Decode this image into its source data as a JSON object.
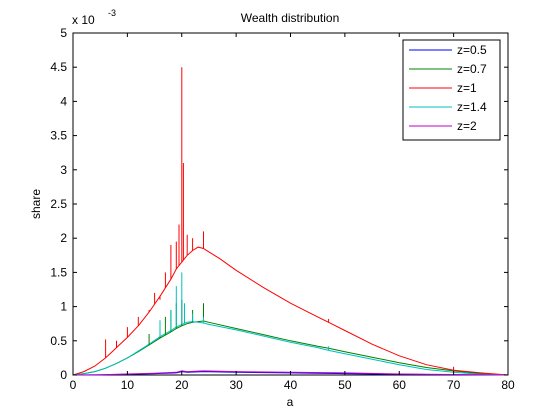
{
  "chart_data": {
    "type": "line",
    "title": "Wealth distribution",
    "xlabel": "a",
    "ylabel": "share",
    "y_scale_label": "x 10",
    "y_scale_exponent": "-3",
    "xlim": [
      0,
      80
    ],
    "ylim": [
      0,
      5
    ],
    "x_ticks": [
      0,
      10,
      20,
      30,
      40,
      50,
      60,
      70,
      80
    ],
    "y_ticks": [
      0,
      0.5,
      1,
      1.5,
      2,
      2.5,
      3,
      3.5,
      4,
      4.5,
      5
    ],
    "grid": false,
    "legend_position": "top-right",
    "series": [
      {
        "name": "z=0.5",
        "color": "#0000ff",
        "points": [
          [
            0,
            0
          ],
          [
            5,
            0.002
          ],
          [
            10,
            0.01
          ],
          [
            15,
            0.02
          ],
          [
            19,
            0.03
          ],
          [
            20,
            0.05
          ],
          [
            21,
            0.04
          ],
          [
            24,
            0.05
          ],
          [
            30,
            0.04
          ],
          [
            40,
            0.03
          ],
          [
            50,
            0.02
          ],
          [
            60,
            0.01
          ],
          [
            70,
            0.005
          ],
          [
            80,
            0
          ]
        ]
      },
      {
        "name": "z=0.7",
        "color": "#008000",
        "points": [
          [
            0,
            0
          ],
          [
            2,
            0.02
          ],
          [
            4,
            0.05
          ],
          [
            6,
            0.1
          ],
          [
            8,
            0.17
          ],
          [
            10,
            0.25
          ],
          [
            12,
            0.34
          ],
          [
            14,
            0.44
          ],
          [
            16,
            0.54
          ],
          [
            18,
            0.63
          ],
          [
            19,
            0.68
          ],
          [
            20,
            0.72
          ],
          [
            21,
            0.75
          ],
          [
            22,
            0.77
          ],
          [
            23,
            0.78
          ],
          [
            24,
            0.79
          ],
          [
            25,
            0.77
          ],
          [
            30,
            0.68
          ],
          [
            35,
            0.59
          ],
          [
            40,
            0.5
          ],
          [
            45,
            0.42
          ],
          [
            47,
            0.39
          ],
          [
            50,
            0.34
          ],
          [
            55,
            0.26
          ],
          [
            60,
            0.18
          ],
          [
            65,
            0.11
          ],
          [
            70,
            0.06
          ],
          [
            75,
            0.02
          ],
          [
            80,
            0
          ]
        ]
      },
      {
        "name": "z=1",
        "color": "#ff0000",
        "points": [
          [
            0,
            0
          ],
          [
            2,
            0.05
          ],
          [
            4,
            0.13
          ],
          [
            6,
            0.25
          ],
          [
            8,
            0.4
          ],
          [
            10,
            0.55
          ],
          [
            12,
            0.72
          ],
          [
            14,
            0.92
          ],
          [
            16,
            1.15
          ],
          [
            18,
            1.4
          ],
          [
            19,
            1.55
          ],
          [
            20,
            1.65
          ],
          [
            21,
            1.75
          ],
          [
            22,
            1.82
          ],
          [
            23,
            1.87
          ],
          [
            24,
            1.85
          ],
          [
            25,
            1.8
          ],
          [
            27,
            1.7
          ],
          [
            30,
            1.53
          ],
          [
            35,
            1.28
          ],
          [
            40,
            1.05
          ],
          [
            45,
            0.85
          ],
          [
            47,
            0.77
          ],
          [
            50,
            0.65
          ],
          [
            55,
            0.45
          ],
          [
            60,
            0.28
          ],
          [
            65,
            0.15
          ],
          [
            70,
            0.07
          ],
          [
            75,
            0.03
          ],
          [
            80,
            0
          ]
        ]
      },
      {
        "name": "z=1.4",
        "color": "#00bfbf",
        "points": [
          [
            0,
            0
          ],
          [
            2,
            0.02
          ],
          [
            4,
            0.05
          ],
          [
            6,
            0.1
          ],
          [
            8,
            0.17
          ],
          [
            10,
            0.25
          ],
          [
            12,
            0.35
          ],
          [
            14,
            0.45
          ],
          [
            16,
            0.56
          ],
          [
            18,
            0.65
          ],
          [
            19,
            0.7
          ],
          [
            20,
            0.74
          ],
          [
            21,
            0.77
          ],
          [
            22,
            0.78
          ],
          [
            23,
            0.77
          ],
          [
            24,
            0.76
          ],
          [
            25,
            0.74
          ],
          [
            30,
            0.66
          ],
          [
            35,
            0.57
          ],
          [
            40,
            0.48
          ],
          [
            45,
            0.4
          ],
          [
            47,
            0.36
          ],
          [
            50,
            0.31
          ],
          [
            55,
            0.23
          ],
          [
            60,
            0.15
          ],
          [
            65,
            0.08
          ],
          [
            70,
            0.04
          ],
          [
            75,
            0.01
          ],
          [
            80,
            0
          ]
        ]
      },
      {
        "name": "z=2",
        "color": "#bf00bf",
        "points": [
          [
            0,
            0
          ],
          [
            5,
            0.005
          ],
          [
            10,
            0.015
          ],
          [
            15,
            0.025
          ],
          [
            19,
            0.04
          ],
          [
            20,
            0.06
          ],
          [
            21,
            0.05
          ],
          [
            24,
            0.06
          ],
          [
            30,
            0.05
          ],
          [
            40,
            0.04
          ],
          [
            50,
            0.03
          ],
          [
            60,
            0.015
          ],
          [
            70,
            0.008
          ],
          [
            80,
            0
          ]
        ]
      }
    ],
    "spikes": [
      {
        "series": "z=1",
        "points": [
          [
            6,
            0.52
          ],
          [
            8,
            0.5
          ],
          [
            10,
            0.7
          ],
          [
            12,
            0.85
          ],
          [
            14,
            0.95
          ],
          [
            15,
            1.2
          ],
          [
            16,
            1.1
          ],
          [
            17,
            1.5
          ],
          [
            18,
            1.9
          ],
          [
            19,
            1.95
          ],
          [
            19.5,
            2.2
          ],
          [
            20,
            4.5
          ],
          [
            20.3,
            3.1
          ],
          [
            21,
            2.05
          ],
          [
            22,
            2.0
          ],
          [
            24,
            2.1
          ],
          [
            47,
            0.82
          ],
          [
            70,
            0.12
          ]
        ]
      },
      {
        "series": "z=0.7",
        "points": [
          [
            14,
            0.6
          ],
          [
            16,
            0.75
          ],
          [
            17,
            0.85
          ],
          [
            18,
            0.95
          ],
          [
            19,
            1.05
          ],
          [
            20,
            1.1
          ],
          [
            22,
            0.95
          ],
          [
            24,
            1.05
          ],
          [
            47,
            0.38
          ]
        ]
      },
      {
        "series": "z=1.4",
        "points": [
          [
            16,
            0.8
          ],
          [
            18,
            0.95
          ],
          [
            19,
            1.3
          ],
          [
            20,
            1.5
          ],
          [
            20.5,
            1.05
          ],
          [
            22,
            0.9
          ],
          [
            24,
            0.85
          ],
          [
            47,
            0.42
          ]
        ]
      }
    ]
  }
}
